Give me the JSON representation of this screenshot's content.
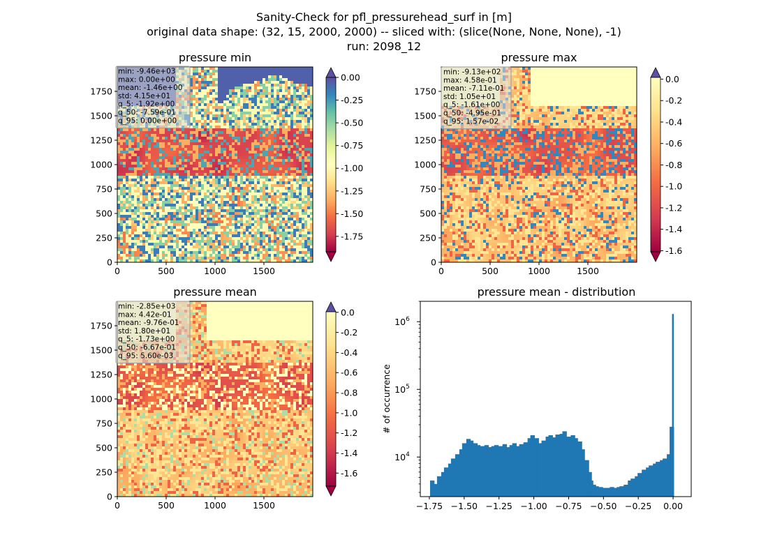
{
  "figure": {
    "title_lines": [
      "Sanity-Check for pfl_pressurehead_surf in [m]",
      "original data shape: (32, 15, 2000, 2000) -- sliced with: (slice(None, None, None), -1)",
      "run: 2098_12"
    ]
  },
  "panels": {
    "min": {
      "title": "pressure min",
      "x_ticks": [
        "0",
        "500",
        "1000",
        "1500"
      ],
      "y_ticks": [
        "0",
        "250",
        "500",
        "750",
        "1000",
        "1250",
        "1500",
        "1750"
      ],
      "stats": [
        "min: -9.46e+03",
        "max: 0.00e+00",
        "mean: -1.46e+00",
        "std: 4.15e+01",
        "q_5: -1.92e+00",
        "q_50: -7.59e-01",
        "q_95: 0.00e+00"
      ],
      "colorbar": {
        "vmin": -1.92,
        "vmax": 0.0,
        "ticks": [
          "0.00",
          "-0.25",
          "-0.50",
          "-0.75",
          "-1.00",
          "-1.25",
          "-1.50",
          "-1.75"
        ],
        "tick_values": [
          0,
          -0.25,
          -0.5,
          -0.75,
          -1.0,
          -1.25,
          -1.5,
          -1.75
        ]
      }
    },
    "max": {
      "title": "pressure max",
      "x_ticks": [
        "0",
        "500",
        "1000",
        "1500"
      ],
      "y_ticks": [
        "0",
        "250",
        "500",
        "750",
        "1000",
        "1250",
        "1500",
        "1750"
      ],
      "stats": [
        "min: -9.13e+02",
        "max: 4.58e-01",
        "mean: -7.11e-01",
        "std: 1.05e+01",
        "q_5: -1.61e+00",
        "q_50: -4.95e-01",
        "q_95: 1.57e-02"
      ],
      "colorbar": {
        "vmin": -1.61,
        "vmax": 0.016,
        "ticks": [
          "0.0",
          "-0.2",
          "-0.4",
          "-0.6",
          "-0.8",
          "-1.0",
          "-1.2",
          "-1.4",
          "-1.6"
        ],
        "tick_values": [
          0,
          -0.2,
          -0.4,
          -0.6,
          -0.8,
          -1.0,
          -1.2,
          -1.4,
          -1.6
        ]
      }
    },
    "mean": {
      "title": "pressure mean",
      "x_ticks": [
        "0",
        "500",
        "1000",
        "1500"
      ],
      "y_ticks": [
        "0",
        "250",
        "500",
        "750",
        "1000",
        "1250",
        "1500",
        "1750"
      ],
      "stats": [
        "min: -2.85e+03",
        "max: 4.42e-01",
        "mean: -9.76e-01",
        "std: 1.80e+01",
        "q_5: -1.73e+00",
        "q_50: -6.67e-01",
        "q_95: 5.60e-03"
      ],
      "colorbar": {
        "vmin": -1.73,
        "vmax": 0.0056,
        "ticks": [
          "0.0",
          "-0.2",
          "-0.4",
          "-0.6",
          "-0.8",
          "-1.0",
          "-1.2",
          "-1.4",
          "-1.6"
        ],
        "tick_values": [
          0,
          -0.2,
          -0.4,
          -0.6,
          -0.8,
          -1.0,
          -1.2,
          -1.4,
          -1.6
        ]
      }
    }
  },
  "colors": {
    "colormap": "Spectral",
    "histogram_bar": "#1f77b4",
    "stats_box": "#d9d9d9"
  },
  "chart_data": {
    "type": "bar",
    "title": "pressure mean - distribution",
    "ylabel": "# of occurrence",
    "xlabel": "",
    "y_scale": "log",
    "xlim": [
      -1.815,
      0.13
    ],
    "ylim": [
      2600,
      2000000
    ],
    "x_ticks": [
      "−1.75",
      "−1.50",
      "−1.25",
      "−1.00",
      "−0.75",
      "−0.50",
      "−0.25",
      "0.00"
    ],
    "x_tick_values": [
      -1.75,
      -1.5,
      -1.25,
      -1.0,
      -0.75,
      -0.5,
      -0.25,
      0.0
    ],
    "y_ticks": [
      "10^4",
      "10^5",
      "10^6"
    ],
    "y_tick_values": [
      10000,
      100000,
      1000000
    ],
    "bin_width": 0.0087,
    "x": [
      -1.73,
      -1.7,
      -1.68,
      -1.65,
      -1.63,
      -1.6,
      -1.58,
      -1.55,
      -1.52,
      -1.5,
      -1.47,
      -1.45,
      -1.42,
      -1.4,
      -1.37,
      -1.34,
      -1.32,
      -1.29,
      -1.27,
      -1.24,
      -1.21,
      -1.19,
      -1.16,
      -1.14,
      -1.11,
      -1.09,
      -1.06,
      -1.03,
      -1.01,
      -0.98,
      -0.96,
      -0.93,
      -0.9,
      -0.88,
      -0.85,
      -0.83,
      -0.8,
      -0.78,
      -0.75,
      -0.72,
      -0.7,
      -0.67,
      -0.65,
      -0.62,
      -0.6,
      -0.59,
      -0.57,
      -0.55,
      -0.52,
      -0.49,
      -0.47,
      -0.44,
      -0.42,
      -0.39,
      -0.37,
      -0.34,
      -0.31,
      -0.29,
      -0.26,
      -0.24,
      -0.21,
      -0.18,
      -0.16,
      -0.13,
      -0.11,
      -0.08,
      -0.06,
      -0.03,
      -0.01,
      0.0
    ],
    "values": [
      4500,
      4000,
      5200,
      6000,
      7000,
      8000,
      9500,
      11000,
      13000,
      16000,
      18500,
      17500,
      16000,
      15000,
      14500,
      15000,
      14000,
      14500,
      15000,
      14500,
      15500,
      14000,
      15000,
      16000,
      14500,
      15500,
      16500,
      19000,
      21000,
      19000,
      16000,
      17500,
      20000,
      21000,
      19500,
      21500,
      22000,
      24000,
      20000,
      21000,
      19000,
      17000,
      13000,
      9000,
      6000,
      4500,
      3900,
      3700,
      3600,
      3500,
      3500,
      3600,
      3500,
      3600,
      3700,
      3900,
      4500,
      4800,
      5200,
      5800,
      6500,
      7000,
      7500,
      8000,
      8500,
      9000,
      9500,
      11000,
      28000,
      1300000
    ]
  }
}
